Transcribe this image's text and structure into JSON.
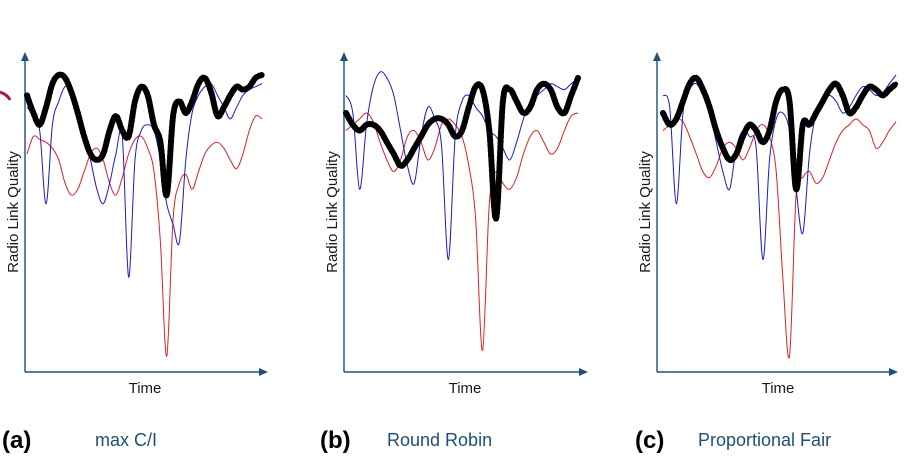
{
  "chart_data": [
    {
      "type": "line",
      "panel_id": "(a)",
      "scheduler": "max C/I",
      "xlabel": "Time",
      "ylabel": "Radio Link Quality",
      "grid": false,
      "legend": "none",
      "series": [
        {
          "color": "#e02020",
          "values": [
            0.72,
            0.78,
            0.77,
            0.76,
            0.74,
            0.7,
            0.62,
            0.58,
            0.6,
            0.66,
            0.72,
            0.74,
            0.7,
            0.62,
            0.58,
            0.64,
            0.72,
            0.77,
            0.78,
            0.74,
            0.66,
            0.42,
            0.03,
            0.5,
            0.62,
            0.65,
            0.6,
            0.66,
            0.72,
            0.75,
            0.76,
            0.74,
            0.7,
            0.67,
            0.72,
            0.8,
            0.85,
            0.84
          ]
        },
        {
          "color": "#1a1acc",
          "values": [
            0.88,
            0.85,
            0.8,
            0.55,
            0.82,
            0.9,
            0.95,
            0.93,
            0.85,
            0.78,
            0.7,
            0.6,
            0.55,
            0.62,
            0.72,
            0.78,
            0.3,
            0.7,
            0.8,
            0.82,
            0.8,
            0.7,
            0.55,
            0.48,
            0.42,
            0.7,
            0.86,
            0.92,
            0.95,
            0.96,
            0.92,
            0.88,
            0.84,
            0.88,
            0.92,
            0.94,
            0.95,
            0.96
          ]
        },
        {
          "color": "#000000",
          "values": [
            0.92,
            0.86,
            0.82,
            0.88,
            0.96,
            0.99,
            0.98,
            0.93,
            0.86,
            0.78,
            0.72,
            0.7,
            0.72,
            0.8,
            0.85,
            0.8,
            0.78,
            0.9,
            0.95,
            0.92,
            0.82,
            0.76,
            0.58,
            0.85,
            0.9,
            0.86,
            0.9,
            0.96,
            0.98,
            0.93,
            0.85,
            0.88,
            0.92,
            0.95,
            0.94,
            0.95,
            0.98,
            0.99
          ]
        }
      ]
    },
    {
      "type": "line",
      "panel_id": "(b)",
      "scheduler": "Round Robin",
      "xlabel": "Time",
      "ylabel": "Radio Link Quality",
      "grid": false,
      "legend": "none",
      "series": [
        {
          "color": "#e02020",
          "values": [
            0.8,
            0.82,
            0.84,
            0.86,
            0.83,
            0.76,
            0.7,
            0.66,
            0.7,
            0.78,
            0.8,
            0.76,
            0.7,
            0.74,
            0.82,
            0.84,
            0.82,
            0.78,
            0.68,
            0.5,
            0.05,
            0.55,
            0.66,
            0.62,
            0.6,
            0.64,
            0.72,
            0.78,
            0.8,
            0.76,
            0.72,
            0.74,
            0.8,
            0.85,
            0.86
          ]
        },
        {
          "color": "#1a1acc",
          "values": [
            0.92,
            0.86,
            0.6,
            0.82,
            0.95,
            1.0,
            0.98,
            0.92,
            0.8,
            0.68,
            0.62,
            0.78,
            0.88,
            0.84,
            0.75,
            0.36,
            0.78,
            0.9,
            0.92,
            0.88,
            0.85,
            0.8,
            0.78,
            0.74,
            0.7,
            0.76,
            0.84,
            0.9,
            0.92,
            0.94,
            0.96,
            0.95,
            0.94,
            0.96,
            0.98
          ]
        },
        {
          "color": "#000000",
          "values": [
            0.86,
            0.82,
            0.8,
            0.82,
            0.82,
            0.8,
            0.76,
            0.72,
            0.68,
            0.7,
            0.74,
            0.78,
            0.82,
            0.84,
            0.84,
            0.82,
            0.78,
            0.8,
            0.88,
            0.95,
            0.94,
            0.8,
            0.5,
            0.9,
            0.94,
            0.9,
            0.86,
            0.88,
            0.94,
            0.96,
            0.94,
            0.88,
            0.86,
            0.92,
            0.98
          ]
        }
      ]
    },
    {
      "type": "line",
      "panel_id": "(c)",
      "scheduler": "Proportional Fair",
      "xlabel": "Time",
      "ylabel": "Radio Link Quality",
      "grid": false,
      "legend": "none",
      "series": [
        {
          "color": "#e02020",
          "values": [
            0.8,
            0.82,
            0.84,
            0.83,
            0.78,
            0.72,
            0.66,
            0.64,
            0.68,
            0.74,
            0.76,
            0.74,
            0.7,
            0.74,
            0.8,
            0.82,
            0.78,
            0.66,
            0.3,
            0.03,
            0.58,
            0.64,
            0.66,
            0.62,
            0.64,
            0.7,
            0.76,
            0.8,
            0.82,
            0.84,
            0.82,
            0.8,
            0.74,
            0.76,
            0.8,
            0.83
          ]
        },
        {
          "color": "#1a1acc",
          "values": [
            0.92,
            0.88,
            0.55,
            0.86,
            0.94,
            0.96,
            0.92,
            0.86,
            0.76,
            0.66,
            0.6,
            0.74,
            0.8,
            0.78,
            0.74,
            0.36,
            0.7,
            0.84,
            0.86,
            0.8,
            0.6,
            0.45,
            0.72,
            0.86,
            0.9,
            0.92,
            0.9,
            0.86,
            0.88,
            0.92,
            0.95,
            0.94,
            0.92,
            0.93,
            0.96,
            0.99
          ]
        },
        {
          "color": "#000000",
          "values": [
            0.86,
            0.82,
            0.84,
            0.9,
            0.96,
            0.98,
            0.94,
            0.88,
            0.8,
            0.74,
            0.7,
            0.72,
            0.78,
            0.82,
            0.8,
            0.76,
            0.8,
            0.9,
            0.94,
            0.9,
            0.6,
            0.82,
            0.82,
            0.86,
            0.9,
            0.94,
            0.96,
            0.92,
            0.86,
            0.88,
            0.92,
            0.95,
            0.94,
            0.92,
            0.94,
            0.96
          ]
        }
      ]
    }
  ]
}
